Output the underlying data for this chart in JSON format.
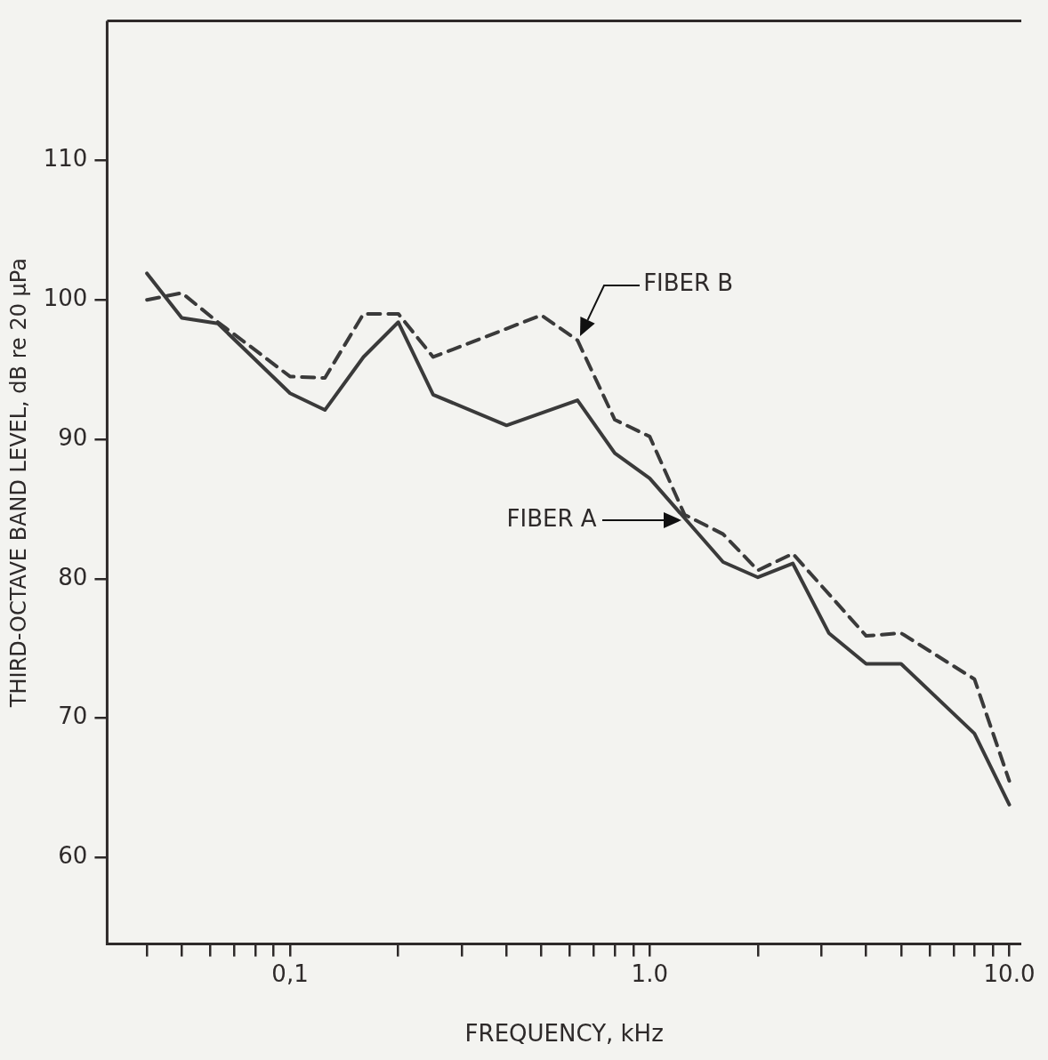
{
  "chart_data": {
    "type": "line",
    "xlabel": "FREQUENCY, kHz",
    "ylabel": "THIRD-OCTAVE BAND LEVEL, dB re 20 μPa",
    "log": "x",
    "grid": false,
    "legend": false,
    "marker": "none",
    "xlim": [
      0.031,
      10.8
    ],
    "ylim": [
      53.8,
      120
    ],
    "xticks": [
      {
        "value": 0.04,
        "label": null
      },
      {
        "value": 0.05,
        "label": null
      },
      {
        "value": 0.06,
        "label": null
      },
      {
        "value": 0.07,
        "label": null
      },
      {
        "value": 0.08,
        "label": null
      },
      {
        "value": 0.09,
        "label": null
      },
      {
        "value": 0.1,
        "label": "0,1"
      },
      {
        "value": 0.2,
        "label": null
      },
      {
        "value": 0.3,
        "label": null
      },
      {
        "value": 0.4,
        "label": null
      },
      {
        "value": 0.5,
        "label": null
      },
      {
        "value": 0.6,
        "label": null
      },
      {
        "value": 0.7,
        "label": null
      },
      {
        "value": 0.8,
        "label": null
      },
      {
        "value": 0.9,
        "label": null
      },
      {
        "value": 1,
        "label": "1.0"
      },
      {
        "value": 2,
        "label": null
      },
      {
        "value": 3,
        "label": null
      },
      {
        "value": 4,
        "label": null
      },
      {
        "value": 5,
        "label": null
      },
      {
        "value": 6,
        "label": null
      },
      {
        "value": 7,
        "label": null
      },
      {
        "value": 8,
        "label": null
      },
      {
        "value": 9,
        "label": null
      },
      {
        "value": 10,
        "label": "10.0"
      }
    ],
    "yticks": [
      60,
      70,
      80,
      90,
      100,
      110
    ],
    "series": [
      {
        "name": "FIBER A",
        "color": "#3a3a3a",
        "line_style": "solid",
        "x": [
          0.04,
          0.05,
          0.063,
          0.1,
          0.125,
          0.16,
          0.2,
          0.25,
          0.4,
          0.63,
          0.8,
          1.0,
          1.6,
          2.0,
          2.5,
          3.15,
          4.0,
          5.0,
          8.0,
          10.0
        ],
        "values": [
          101.9,
          98.7,
          98.3,
          93.3,
          92.1,
          95.9,
          98.4,
          93.2,
          91.0,
          92.8,
          89.0,
          87.2,
          81.2,
          80.1,
          81.1,
          76.1,
          73.9,
          73.9,
          68.9,
          63.8
        ]
      },
      {
        "name": "FIBER B",
        "color": "#3a3a3a",
        "line_style": "dashed",
        "x": [
          0.04,
          0.05,
          0.063,
          0.08,
          0.1,
          0.125,
          0.16,
          0.2,
          0.25,
          0.5,
          0.63,
          0.8,
          1.0,
          1.25,
          1.6,
          2.0,
          2.5,
          4.0,
          5.0,
          8.0,
          10.0
        ],
        "values": [
          100.0,
          100.5,
          98.4,
          96.4,
          94.5,
          94.4,
          99.0,
          99.0,
          95.9,
          98.9,
          97.1,
          91.4,
          90.2,
          84.6,
          83.2,
          80.6,
          81.8,
          75.9,
          76.1,
          72.8,
          65.5
        ]
      }
    ]
  }
}
